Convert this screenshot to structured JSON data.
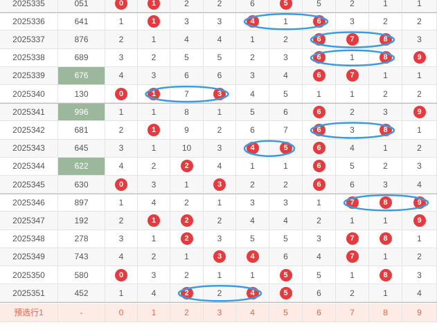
{
  "rows": [
    {
      "issue": "2025335",
      "num": "051",
      "hl": false,
      "digits": [
        0,
        1,
        2,
        2,
        6,
        5,
        5,
        2,
        1,
        1
      ],
      "balls": [
        0,
        1,
        5
      ]
    },
    {
      "issue": "2025336",
      "num": "641",
      "hl": false,
      "digits": [
        1,
        1,
        3,
        3,
        4,
        1,
        6,
        3,
        2,
        2
      ],
      "balls": [
        1,
        4,
        6
      ]
    },
    {
      "issue": "2025337",
      "num": "876",
      "hl": false,
      "digits": [
        2,
        1,
        4,
        4,
        1,
        2,
        6,
        7,
        8,
        3
      ],
      "balls": [
        6,
        7,
        8
      ]
    },
    {
      "issue": "2025338",
      "num": "689",
      "hl": false,
      "digits": [
        3,
        2,
        5,
        5,
        2,
        3,
        6,
        1,
        8,
        9
      ],
      "balls": [
        6,
        8,
        9
      ]
    },
    {
      "issue": "2025339",
      "num": "676",
      "hl": true,
      "digits": [
        4,
        3,
        6,
        6,
        3,
        4,
        6,
        7,
        1,
        1
      ],
      "balls": [
        6,
        7
      ]
    },
    {
      "issue": "2025340",
      "num": "130",
      "hl": false,
      "digits": [
        0,
        1,
        7,
        3,
        4,
        5,
        1,
        1,
        2,
        2
      ],
      "balls": [
        0,
        1,
        3
      ]
    },
    {
      "issue": "2025341",
      "num": "996",
      "hl": true,
      "digits": [
        1,
        1,
        8,
        1,
        5,
        6,
        6,
        2,
        3,
        9
      ],
      "balls": [
        6,
        9
      ]
    },
    {
      "issue": "2025342",
      "num": "681",
      "hl": false,
      "digits": [
        2,
        1,
        9,
        2,
        6,
        7,
        6,
        3,
        8,
        1
      ],
      "balls": [
        1,
        6,
        8
      ]
    },
    {
      "issue": "2025343",
      "num": "645",
      "hl": false,
      "digits": [
        3,
        1,
        10,
        3,
        4,
        5,
        6,
        4,
        1,
        2
      ],
      "balls": [
        4,
        5,
        6
      ]
    },
    {
      "issue": "2025344",
      "num": "622",
      "hl": true,
      "digits": [
        4,
        2,
        2,
        4,
        1,
        1,
        6,
        5,
        2,
        3
      ],
      "balls": [
        2,
        6
      ]
    },
    {
      "issue": "2025345",
      "num": "630",
      "hl": false,
      "digits": [
        0,
        3,
        1,
        3,
        2,
        2,
        6,
        6,
        3,
        4
      ],
      "balls": [
        0,
        3,
        6
      ]
    },
    {
      "issue": "2025346",
      "num": "897",
      "hl": false,
      "digits": [
        1,
        4,
        2,
        1,
        3,
        3,
        1,
        7,
        8,
        9
      ],
      "balls": [
        7,
        8,
        9
      ]
    },
    {
      "issue": "2025347",
      "num": "192",
      "hl": false,
      "digits": [
        2,
        1,
        2,
        2,
        4,
        4,
        2,
        1,
        1,
        9
      ],
      "balls": [
        1,
        2,
        9
      ]
    },
    {
      "issue": "2025348",
      "num": "278",
      "hl": false,
      "digits": [
        3,
        1,
        2,
        3,
        5,
        5,
        3,
        7,
        8,
        1
      ],
      "balls": [
        2,
        7,
        8
      ]
    },
    {
      "issue": "2025349",
      "num": "743",
      "hl": false,
      "digits": [
        4,
        2,
        1,
        3,
        4,
        6,
        4,
        7,
        1,
        2
      ],
      "balls": [
        3,
        4,
        7
      ]
    },
    {
      "issue": "2025350",
      "num": "580",
      "hl": false,
      "digits": [
        0,
        3,
        2,
        1,
        1,
        5,
        5,
        1,
        8,
        3
      ],
      "balls": [
        0,
        5,
        8
      ]
    },
    {
      "issue": "2025351",
      "num": "452",
      "hl": false,
      "digits": [
        1,
        4,
        2,
        2,
        4,
        5,
        6,
        2,
        1,
        4
      ],
      "balls": [
        2,
        4,
        5
      ]
    }
  ],
  "footer": {
    "label": "预选行1",
    "num": "-",
    "digits": [
      "0",
      "1",
      "2",
      "3",
      "4",
      "5",
      "6",
      "7",
      "8",
      "9"
    ]
  },
  "colors": {
    "ball": "#e8393d",
    "highlight": "#9cb89c",
    "oval": "#3a9be0",
    "footer_text": "#e06a4e"
  }
}
